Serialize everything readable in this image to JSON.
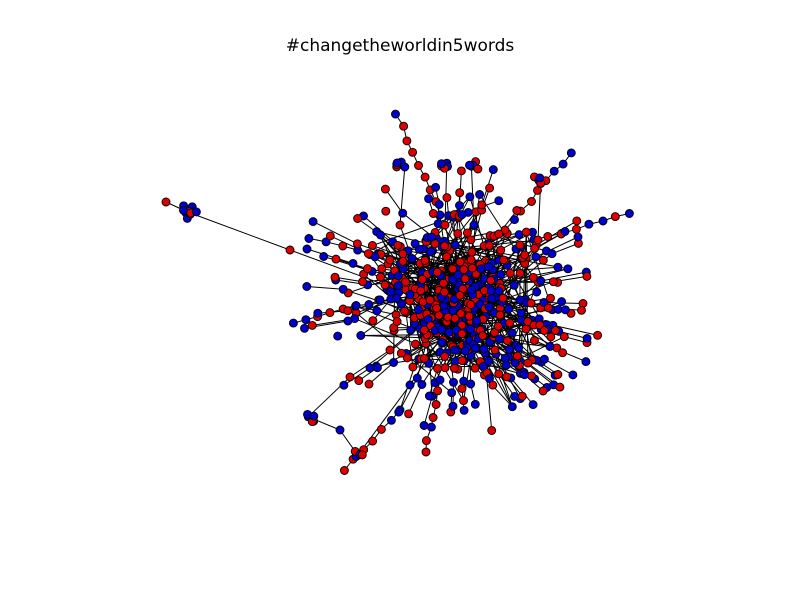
{
  "figure": {
    "title": "#changetheworldin5words"
  },
  "graph": {
    "node_colors": {
      "red": "#dd0000",
      "blue": "#0000cc"
    },
    "edge_color": "#000000",
    "node_outline_color": "#000000"
  }
}
